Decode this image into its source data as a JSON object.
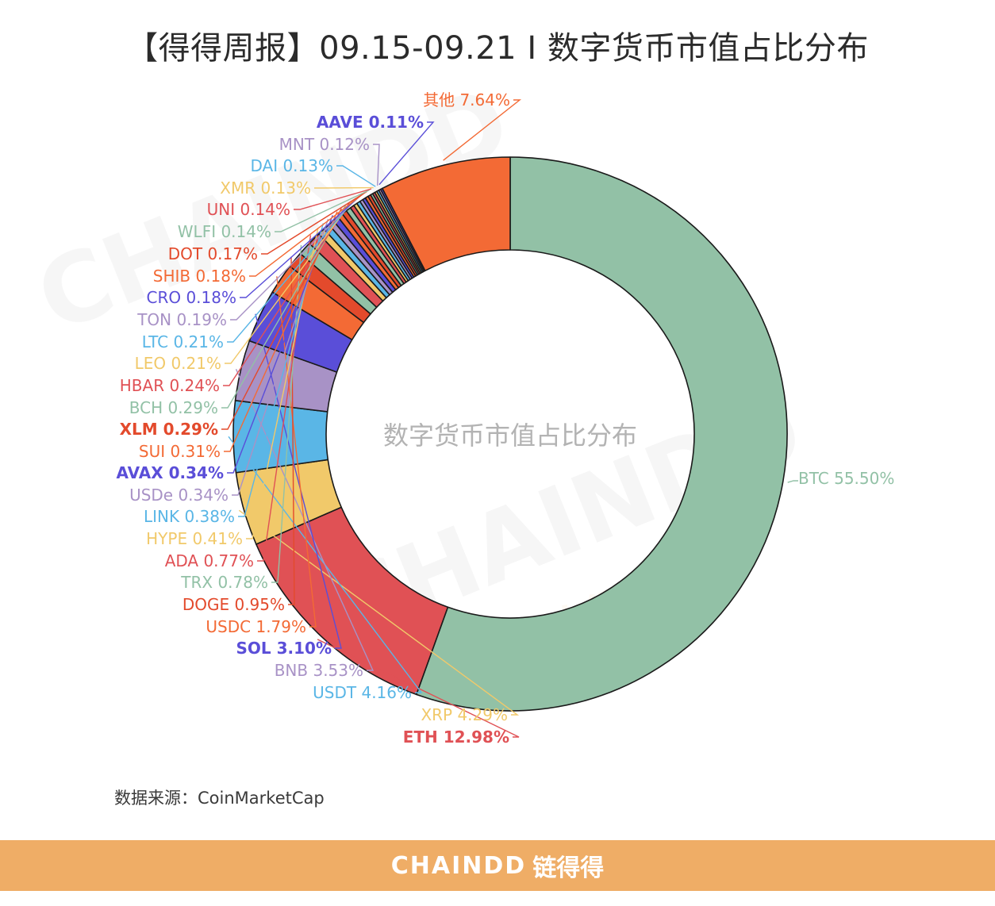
{
  "title": "【得得周报】09.15-09.21 I 数字货币市值占比分布",
  "source": "数据来源：CoinMarketCap",
  "watermark": {
    "brand": "CHAINDD",
    "cn": "链得得"
  },
  "footer": {
    "brand": "CHAINDD",
    "cn": "链得得"
  },
  "chart_data": {
    "type": "pie",
    "center_label": "数字货币市值占比分布",
    "slices": [
      {
        "name": "BTC",
        "label": "BTC 55.50%",
        "value": 55.5,
        "color": "#92c1a6"
      },
      {
        "name": "ETH",
        "label": "ETH 12.98%",
        "value": 12.98,
        "color": "#e05155"
      },
      {
        "name": "XRP",
        "label": "XRP 4.29%",
        "value": 4.29,
        "color": "#f1c96a"
      },
      {
        "name": "USDT",
        "label": "USDT 4.16%",
        "value": 4.16,
        "color": "#5ab6e6"
      },
      {
        "name": "BNB",
        "label": "BNB 3.53%",
        "value": 3.53,
        "color": "#a892c6"
      },
      {
        "name": "SOL",
        "label": "SOL 3.10%",
        "value": 3.1,
        "color": "#5a4ed8"
      },
      {
        "name": "USDC",
        "label": "USDC 1.79%",
        "value": 1.79,
        "color": "#f36a35"
      },
      {
        "name": "DOGE",
        "label": "DOGE 0.95%",
        "value": 0.95,
        "color": "#e34a2c"
      },
      {
        "name": "TRX",
        "label": "TRX 0.78%",
        "value": 0.78,
        "color": "#92c1a6"
      },
      {
        "name": "ADA",
        "label": "ADA 0.77%",
        "value": 0.77,
        "color": "#e05155"
      },
      {
        "name": "HYPE",
        "label": "HYPE 0.41%",
        "value": 0.41,
        "color": "#f1c96a"
      },
      {
        "name": "LINK",
        "label": "LINK 0.38%",
        "value": 0.38,
        "color": "#5ab6e6"
      },
      {
        "name": "USDe",
        "label": "USDe 0.34%",
        "value": 0.34,
        "color": "#a892c6"
      },
      {
        "name": "AVAX",
        "label": "AVAX 0.34%",
        "value": 0.34,
        "color": "#5a4ed8"
      },
      {
        "name": "SUI",
        "label": "SUI 0.31%",
        "value": 0.31,
        "color": "#f36a35"
      },
      {
        "name": "XLM",
        "label": "XLM 0.29%",
        "value": 0.29,
        "color": "#e34a2c"
      },
      {
        "name": "BCH",
        "label": "BCH 0.29%",
        "value": 0.29,
        "color": "#92c1a6"
      },
      {
        "name": "HBAR",
        "label": "HBAR 0.24%",
        "value": 0.24,
        "color": "#e05155"
      },
      {
        "name": "LEO",
        "label": "LEO 0.21%",
        "value": 0.21,
        "color": "#f1c96a"
      },
      {
        "name": "LTC",
        "label": "LTC 0.21%",
        "value": 0.21,
        "color": "#5ab6e6"
      },
      {
        "name": "TON",
        "label": "TON 0.19%",
        "value": 0.19,
        "color": "#a892c6"
      },
      {
        "name": "CRO",
        "label": "CRO 0.18%",
        "value": 0.18,
        "color": "#5a4ed8"
      },
      {
        "name": "SHIB",
        "label": "SHIB 0.18%",
        "value": 0.18,
        "color": "#f36a35"
      },
      {
        "name": "DOT",
        "label": "DOT 0.17%",
        "value": 0.17,
        "color": "#e34a2c"
      },
      {
        "name": "WLFI",
        "label": "WLFI 0.14%",
        "value": 0.14,
        "color": "#92c1a6"
      },
      {
        "name": "UNI",
        "label": "UNI 0.14%",
        "value": 0.14,
        "color": "#e05155"
      },
      {
        "name": "XMR",
        "label": "XMR 0.13%",
        "value": 0.13,
        "color": "#f1c96a"
      },
      {
        "name": "DAI",
        "label": "DAI 0.13%",
        "value": 0.13,
        "color": "#5ab6e6"
      },
      {
        "name": "MNT",
        "label": "MNT 0.12%",
        "value": 0.12,
        "color": "#a892c6"
      },
      {
        "name": "AAVE",
        "label": "AAVE 0.11%",
        "value": 0.11,
        "color": "#5a4ed8"
      },
      {
        "name": "其他",
        "label": "其他 7.64%",
        "value": 7.64,
        "color": "#f36a35"
      }
    ]
  }
}
